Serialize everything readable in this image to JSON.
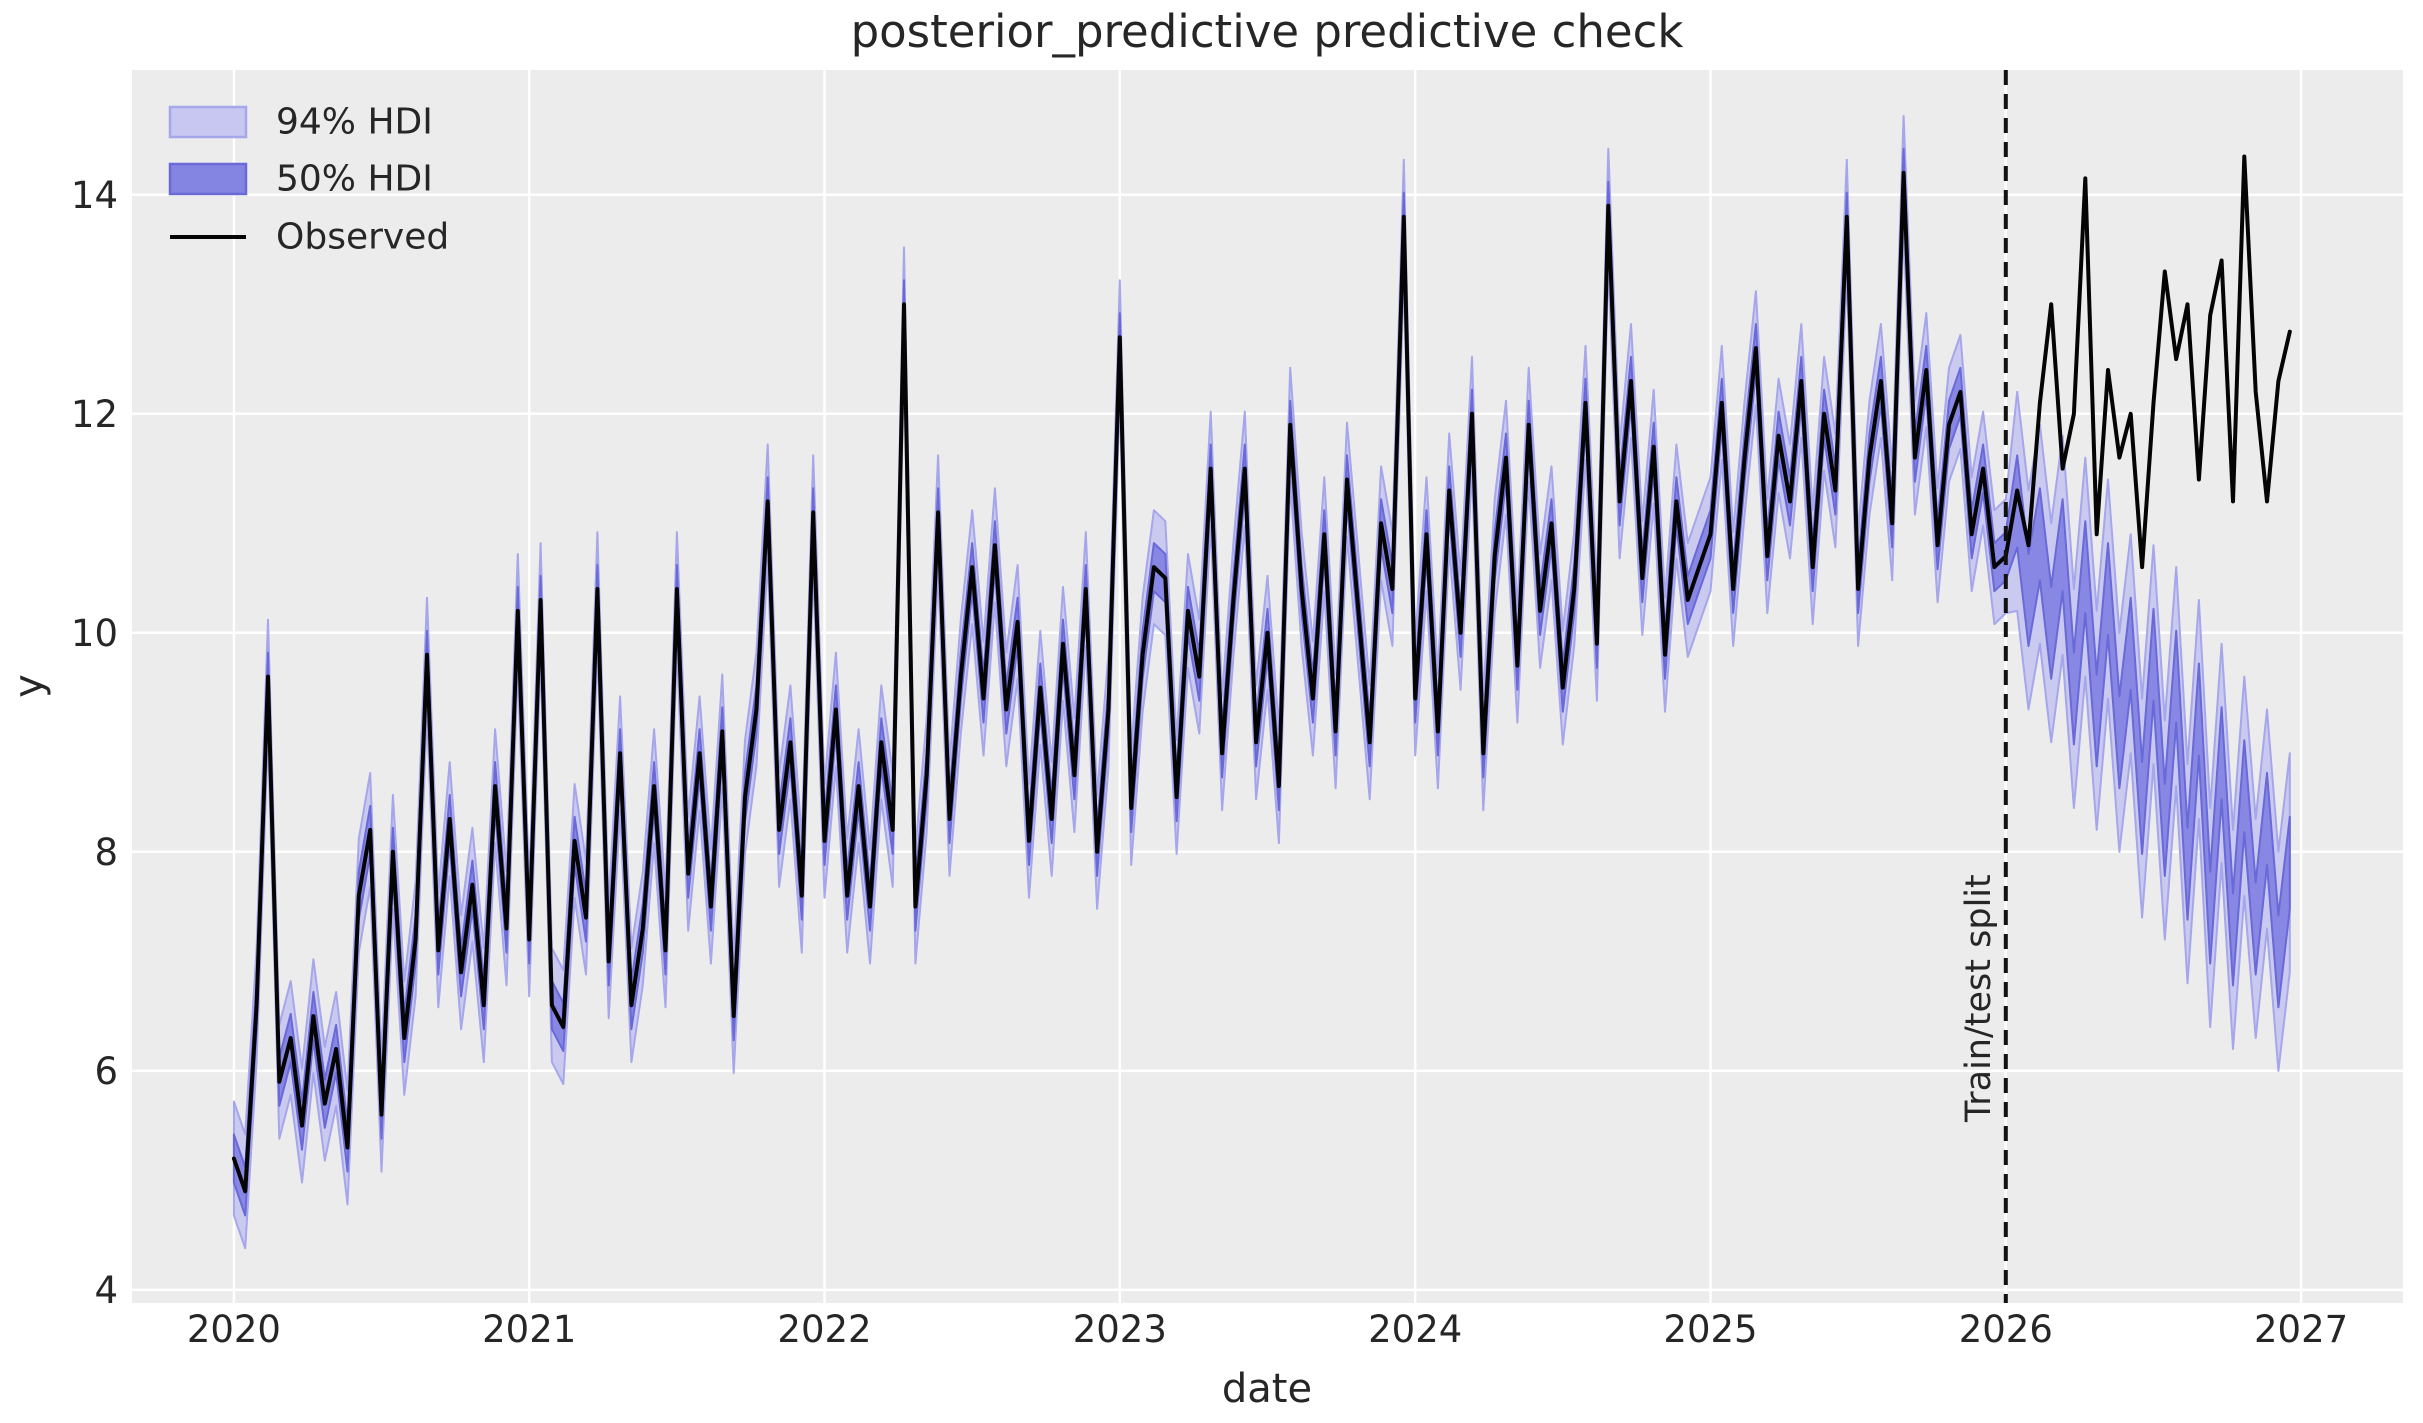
{
  "figure": {
    "colors": {
      "figure_background": "#ffffff",
      "axes_background": "#ececec",
      "grid": "#ffffff",
      "text": "#262626",
      "observed_line": "#050505",
      "hdi94_fill": "#c7c7f1",
      "hdi94_edge": "#a6a6ea",
      "hdi50_fill": "#8484e3",
      "hdi50_edge": "#6969d8",
      "split_line": "#111111"
    }
  },
  "chart_data": {
    "type": "line",
    "title": "posterior_predictive predictive check",
    "xlabel": "date",
    "ylabel": "y",
    "split_label": "Train/test split",
    "grid": true,
    "legend_position": "upper left",
    "legend": [
      {
        "label": "94% HDI",
        "kind": "band"
      },
      {
        "label": "50% HDI",
        "kind": "band"
      },
      {
        "label": "Observed",
        "kind": "line"
      }
    ],
    "xlim": [
      2019.655,
      2027.345
    ],
    "ylim": [
      3.88,
      15.14
    ],
    "xticks": [
      2020,
      2021,
      2022,
      2023,
      2024,
      2025,
      2026,
      2027
    ],
    "yticks": [
      4,
      6,
      8,
      10,
      12,
      14
    ],
    "train_test_split_x": 2026.0,
    "x_start": 2020.0,
    "x_step_years": 0.0384615,
    "n_points": 182,
    "observed": [
      5.2,
      4.9,
      6.6,
      9.6,
      5.9,
      6.3,
      5.5,
      6.5,
      5.7,
      6.2,
      5.3,
      7.6,
      8.2,
      5.6,
      8.0,
      6.3,
      7.2,
      9.8,
      7.1,
      8.3,
      6.9,
      7.7,
      6.6,
      8.6,
      7.3,
      10.2,
      7.2,
      10.3,
      6.6,
      6.4,
      8.1,
      7.4,
      10.4,
      7.0,
      8.9,
      6.6,
      7.3,
      8.6,
      7.1,
      10.4,
      7.8,
      8.9,
      7.5,
      9.1,
      6.5,
      8.5,
      9.3,
      11.2,
      8.2,
      9.0,
      7.6,
      11.1,
      8.1,
      9.3,
      7.6,
      8.6,
      7.5,
      9.0,
      8.2,
      13.0,
      7.5,
      8.7,
      11.1,
      8.3,
      9.6,
      10.6,
      9.4,
      10.8,
      9.3,
      10.1,
      8.1,
      9.5,
      8.3,
      9.9,
      8.7,
      10.4,
      8.0,
      9.3,
      12.7,
      8.4,
      9.8,
      10.6,
      10.5,
      8.5,
      10.2,
      9.6,
      11.5,
      8.9,
      10.3,
      11.5,
      9.0,
      10.0,
      8.6,
      11.9,
      10.4,
      9.4,
      10.9,
      9.1,
      11.4,
      10.2,
      9.0,
      11.0,
      10.4,
      13.8,
      9.4,
      10.9,
      9.1,
      11.3,
      10.0,
      12.0,
      8.9,
      10.7,
      11.6,
      9.7,
      11.9,
      10.2,
      11.0,
      9.5,
      10.4,
      12.1,
      9.9,
      13.9,
      11.2,
      12.3,
      10.5,
      11.7,
      9.8,
      11.2,
      10.3,
      10.6,
      10.9,
      12.1,
      10.4,
      11.6,
      12.6,
      10.7,
      11.8,
      11.2,
      12.3,
      10.6,
      12.0,
      11.3,
      13.8,
      10.4,
      11.6,
      12.3,
      11.0,
      14.2,
      11.6,
      12.4,
      10.8,
      11.9,
      12.2,
      10.9,
      11.5,
      10.6,
      10.7,
      11.3,
      10.8,
      12.1,
      13.0,
      11.5,
      12.0,
      14.15,
      10.9,
      12.4,
      11.6,
      12.0,
      10.6,
      12.1,
      13.3,
      12.5,
      13.0,
      11.4,
      12.9,
      13.4,
      11.2,
      14.35,
      12.2,
      11.2,
      12.3,
      12.75
    ],
    "prediction": {
      "test_start_index": 157,
      "train_band_center": "observed",
      "test_band_center": [
        11.2,
        10.3,
        10.9,
        10.0,
        10.8,
        9.4,
        10.6,
        9.2,
        10.4,
        9.0,
        9.9,
        8.4,
        9.8,
        8.2,
        9.6,
        7.8,
        9.3,
        7.4,
        8.9,
        7.2,
        8.6,
        7.3,
        8.3,
        7.0,
        7.9
      ],
      "hdi50_half_width_train": 0.22,
      "hdi94_half_width_train": 0.52,
      "hdi50_half_width_test": 0.42,
      "hdi94_half_width_test": 1.0
    }
  }
}
